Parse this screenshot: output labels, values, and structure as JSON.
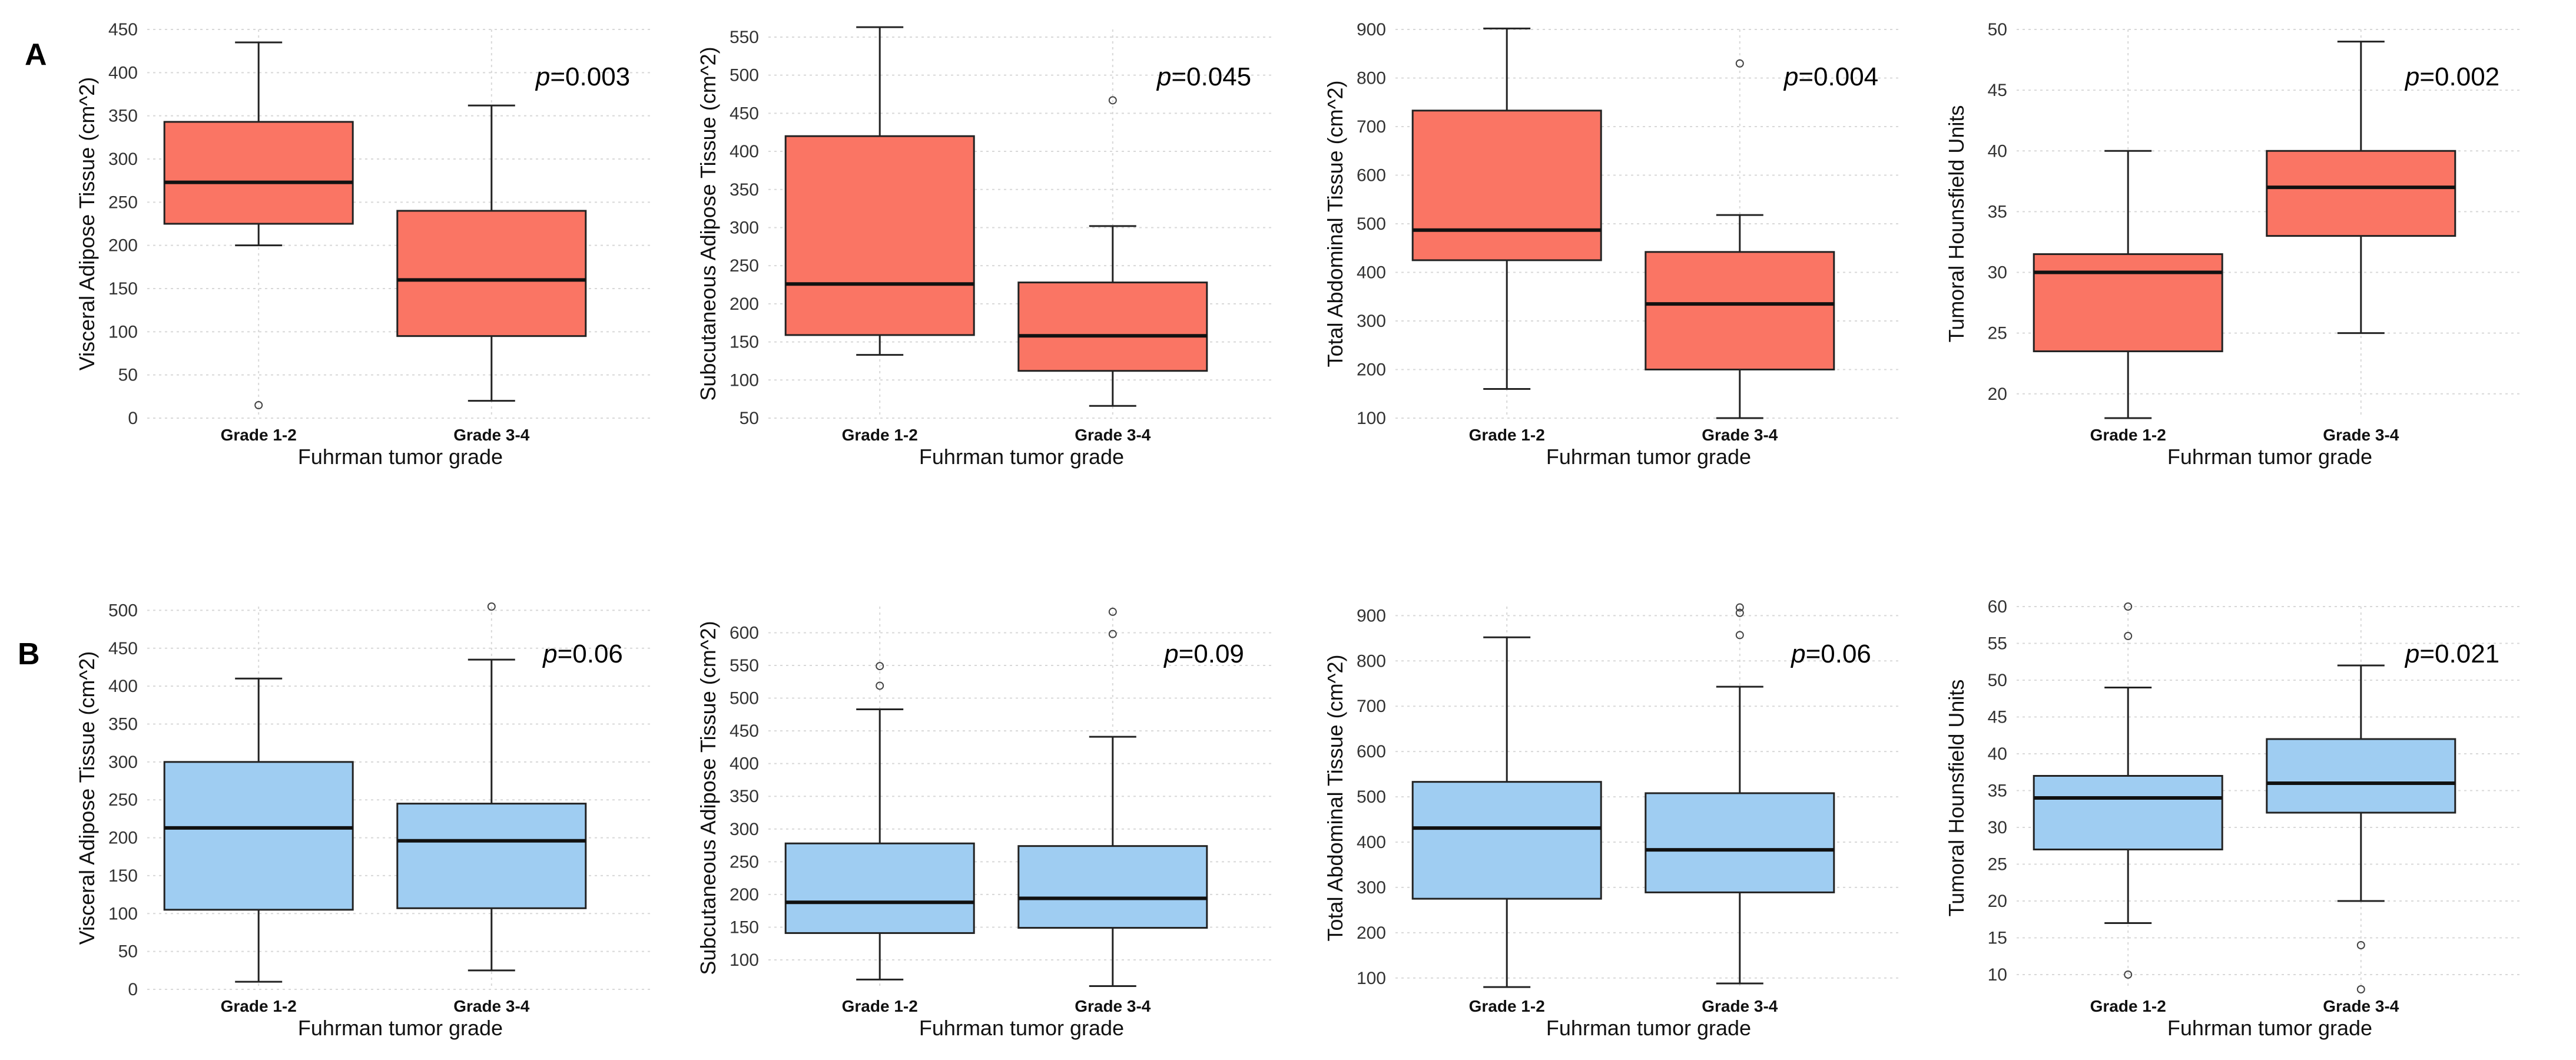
{
  "figure": {
    "row_labels": [
      "A",
      "B"
    ],
    "colors": {
      "row_a_fill": "#FA7564",
      "row_b_fill": "#9FCDF2",
      "stroke": "#222222",
      "grid": "#d8d8d8"
    }
  },
  "chart_data": [
    {
      "type": "box",
      "row": "A",
      "xlabel": "Fuhrman tumor grade",
      "ylabel": "Visceral Adipose Tissue (cm^2)",
      "categories": [
        "Grade 1-2",
        "Grade 3-4"
      ],
      "ylim": [
        0,
        450
      ],
      "yticks": [
        0,
        50,
        100,
        150,
        200,
        250,
        300,
        350,
        400,
        450
      ],
      "annotation": {
        "prefix": "p",
        "text": "=0.003"
      },
      "boxes": [
        {
          "category": "Grade 1-2",
          "low": 200,
          "q1": 225,
          "median": 273,
          "q3": 343,
          "high": 435,
          "outliers": [
            15
          ]
        },
        {
          "category": "Grade 3-4",
          "low": 20,
          "q1": 95,
          "median": 160,
          "q3": 240,
          "high": 362,
          "outliers": []
        }
      ]
    },
    {
      "type": "box",
      "row": "A",
      "xlabel": "Fuhrman tumor grade",
      "ylabel": "Subcutaneous Adipose Tissue (cm^2)",
      "categories": [
        "Grade 1-2",
        "Grade 3-4"
      ],
      "ylim": [
        50,
        560
      ],
      "yticks": [
        50,
        100,
        150,
        200,
        250,
        300,
        350,
        400,
        450,
        500,
        550
      ],
      "annotation": {
        "prefix": "p",
        "text": "=0.045"
      },
      "boxes": [
        {
          "category": "Grade 1-2",
          "low": 133,
          "q1": 159,
          "median": 226,
          "q3": 420,
          "high": 563,
          "outliers": []
        },
        {
          "category": "Grade 3-4",
          "low": 66,
          "q1": 112,
          "median": 158,
          "q3": 228,
          "high": 302,
          "outliers": [
            467
          ]
        }
      ]
    },
    {
      "type": "box",
      "row": "A",
      "xlabel": "Fuhrman tumor grade",
      "ylabel": "Total Abdominal Tissue (cm^2)",
      "categories": [
        "Grade 1-2",
        "Grade 3-4"
      ],
      "ylim": [
        100,
        900
      ],
      "yticks": [
        100,
        200,
        300,
        400,
        500,
        600,
        700,
        800,
        900
      ],
      "annotation": {
        "prefix": "p",
        "text": "=0.004"
      },
      "boxes": [
        {
          "category": "Grade 1-2",
          "low": 160,
          "q1": 425,
          "median": 487,
          "q3": 733,
          "high": 902,
          "outliers": []
        },
        {
          "category": "Grade 3-4",
          "low": 100,
          "q1": 200,
          "median": 335,
          "q3": 442,
          "high": 518,
          "outliers": [
            830
          ]
        }
      ]
    },
    {
      "type": "box",
      "row": "A",
      "xlabel": "Fuhrman tumor grade",
      "ylabel": "Tumoral Hounsfield Units",
      "categories": [
        "Grade 1-2",
        "Grade 3-4"
      ],
      "ylim": [
        18,
        50
      ],
      "yticks": [
        20,
        25,
        30,
        35,
        40,
        45,
        50
      ],
      "annotation": {
        "prefix": "p",
        "text": "=0.002"
      },
      "boxes": [
        {
          "category": "Grade 1-2",
          "low": 18,
          "q1": 23.5,
          "median": 30,
          "q3": 31.5,
          "high": 40,
          "outliers": []
        },
        {
          "category": "Grade 3-4",
          "low": 25,
          "q1": 33,
          "median": 37,
          "q3": 40,
          "high": 49,
          "outliers": []
        }
      ]
    },
    {
      "type": "box",
      "row": "B",
      "xlabel": "Fuhrman tumor grade",
      "ylabel": "Visceral Adipose Tissue (cm^2)",
      "categories": [
        "Grade 1-2",
        "Grade 3-4"
      ],
      "ylim": [
        0,
        505
      ],
      "yticks": [
        0,
        50,
        100,
        150,
        200,
        250,
        300,
        350,
        400,
        450,
        500
      ],
      "annotation": {
        "prefix": "p",
        "text": "=0.06"
      },
      "boxes": [
        {
          "category": "Grade 1-2",
          "low": 10,
          "q1": 105,
          "median": 213,
          "q3": 300,
          "high": 410,
          "outliers": []
        },
        {
          "category": "Grade 3-4",
          "low": 25,
          "q1": 107,
          "median": 196,
          "q3": 245,
          "high": 435,
          "outliers": [
            505
          ]
        }
      ]
    },
    {
      "type": "box",
      "row": "B",
      "xlabel": "Fuhrman tumor grade",
      "ylabel": "Subcutaneous Adipose Tissue (cm^2)",
      "categories": [
        "Grade 1-2",
        "Grade 3-4"
      ],
      "ylim": [
        55,
        640
      ],
      "yticks": [
        50,
        100,
        150,
        200,
        250,
        300,
        350,
        400,
        450,
        500,
        550,
        600,
        650
      ],
      "annotation": {
        "prefix": "p",
        "text": "=0.09"
      },
      "boxes": [
        {
          "category": "Grade 1-2",
          "low": 70,
          "q1": 141,
          "median": 188,
          "q3": 278,
          "high": 483,
          "outliers": [
            519,
            549
          ]
        },
        {
          "category": "Grade 3-4",
          "low": 60,
          "q1": 149,
          "median": 194,
          "q3": 274,
          "high": 441,
          "outliers": [
            598,
            632
          ]
        }
      ]
    },
    {
      "type": "box",
      "row": "B",
      "xlabel": "Fuhrman tumor grade",
      "ylabel": "Total Abdominal Tissue (cm^2)",
      "categories": [
        "Grade 1-2",
        "Grade 3-4"
      ],
      "ylim": [
        75,
        920
      ],
      "yticks": [
        100,
        200,
        300,
        400,
        500,
        600,
        700,
        800,
        900
      ],
      "annotation": {
        "prefix": "p",
        "text": "=0.06"
      },
      "boxes": [
        {
          "category": "Grade 1-2",
          "low": 80,
          "q1": 275,
          "median": 431,
          "q3": 533,
          "high": 852,
          "outliers": []
        },
        {
          "category": "Grade 3-4",
          "low": 88,
          "q1": 289,
          "median": 383,
          "q3": 508,
          "high": 743,
          "outliers": [
            857,
            906,
            918
          ]
        }
      ]
    },
    {
      "type": "box",
      "row": "B",
      "xlabel": "Fuhrman tumor grade",
      "ylabel": "Tumoral Hounsfield Units",
      "categories": [
        "Grade 1-2",
        "Grade 3-4"
      ],
      "ylim": [
        8,
        60
      ],
      "yticks": [
        10,
        15,
        20,
        25,
        30,
        35,
        40,
        45,
        50,
        55,
        60
      ],
      "annotation": {
        "prefix": "p",
        "text": "=0.021"
      },
      "boxes": [
        {
          "category": "Grade 1-2",
          "low": 17,
          "q1": 27,
          "median": 34,
          "q3": 37,
          "high": 49,
          "outliers": [
            10,
            56,
            60
          ]
        },
        {
          "category": "Grade 3-4",
          "low": 20,
          "q1": 32,
          "median": 36,
          "q3": 42,
          "high": 52,
          "outliers": [
            8,
            14
          ]
        }
      ]
    }
  ]
}
